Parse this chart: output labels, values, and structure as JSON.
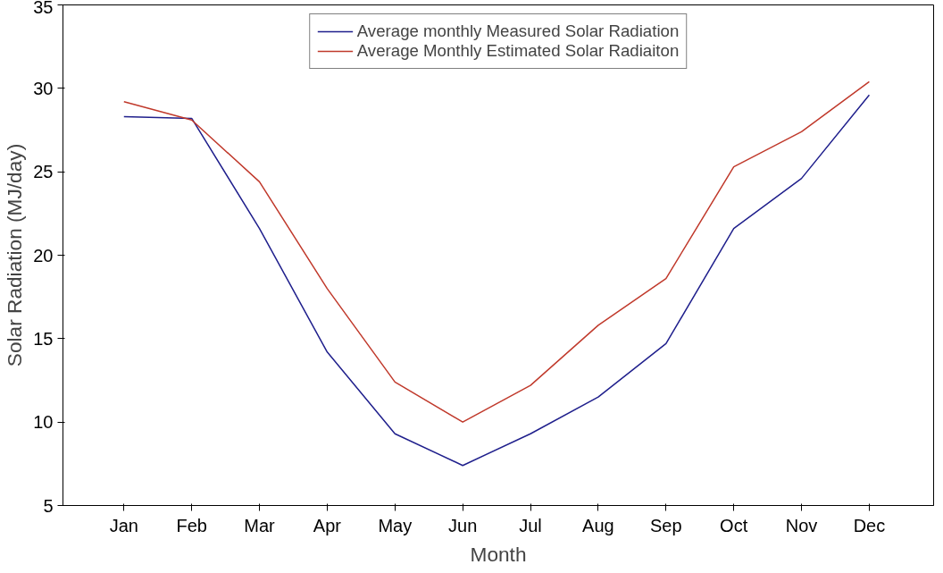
{
  "chart_data": {
    "type": "line",
    "xlabel": "Month",
    "ylabel": "Solar Radiation (MJ/day)",
    "categories": [
      "Jan",
      "Feb",
      "Mar",
      "Apr",
      "May",
      "Jun",
      "Jul",
      "Aug",
      "Sep",
      "Oct",
      "Nov",
      "Dec"
    ],
    "series": [
      {
        "name": "Average monthly Measured Solar Radiation",
        "color": "#1f1f8c",
        "values": [
          28.3,
          28.2,
          21.6,
          14.2,
          9.3,
          7.4,
          9.3,
          11.5,
          14.7,
          21.6,
          24.6,
          29.6
        ]
      },
      {
        "name": "Average Monthly Estimated Solar Radiaiton",
        "color": "#c0392b",
        "values": [
          29.2,
          28.1,
          24.4,
          18.0,
          12.4,
          10.0,
          12.2,
          15.8,
          18.6,
          25.3,
          27.4,
          30.4
        ]
      }
    ],
    "ylim": [
      5,
      35
    ],
    "yticks": [
      5,
      10,
      15,
      20,
      25,
      30,
      35
    ],
    "grid": false,
    "legend": "top",
    "marker": "none",
    "line_style": "solid"
  }
}
